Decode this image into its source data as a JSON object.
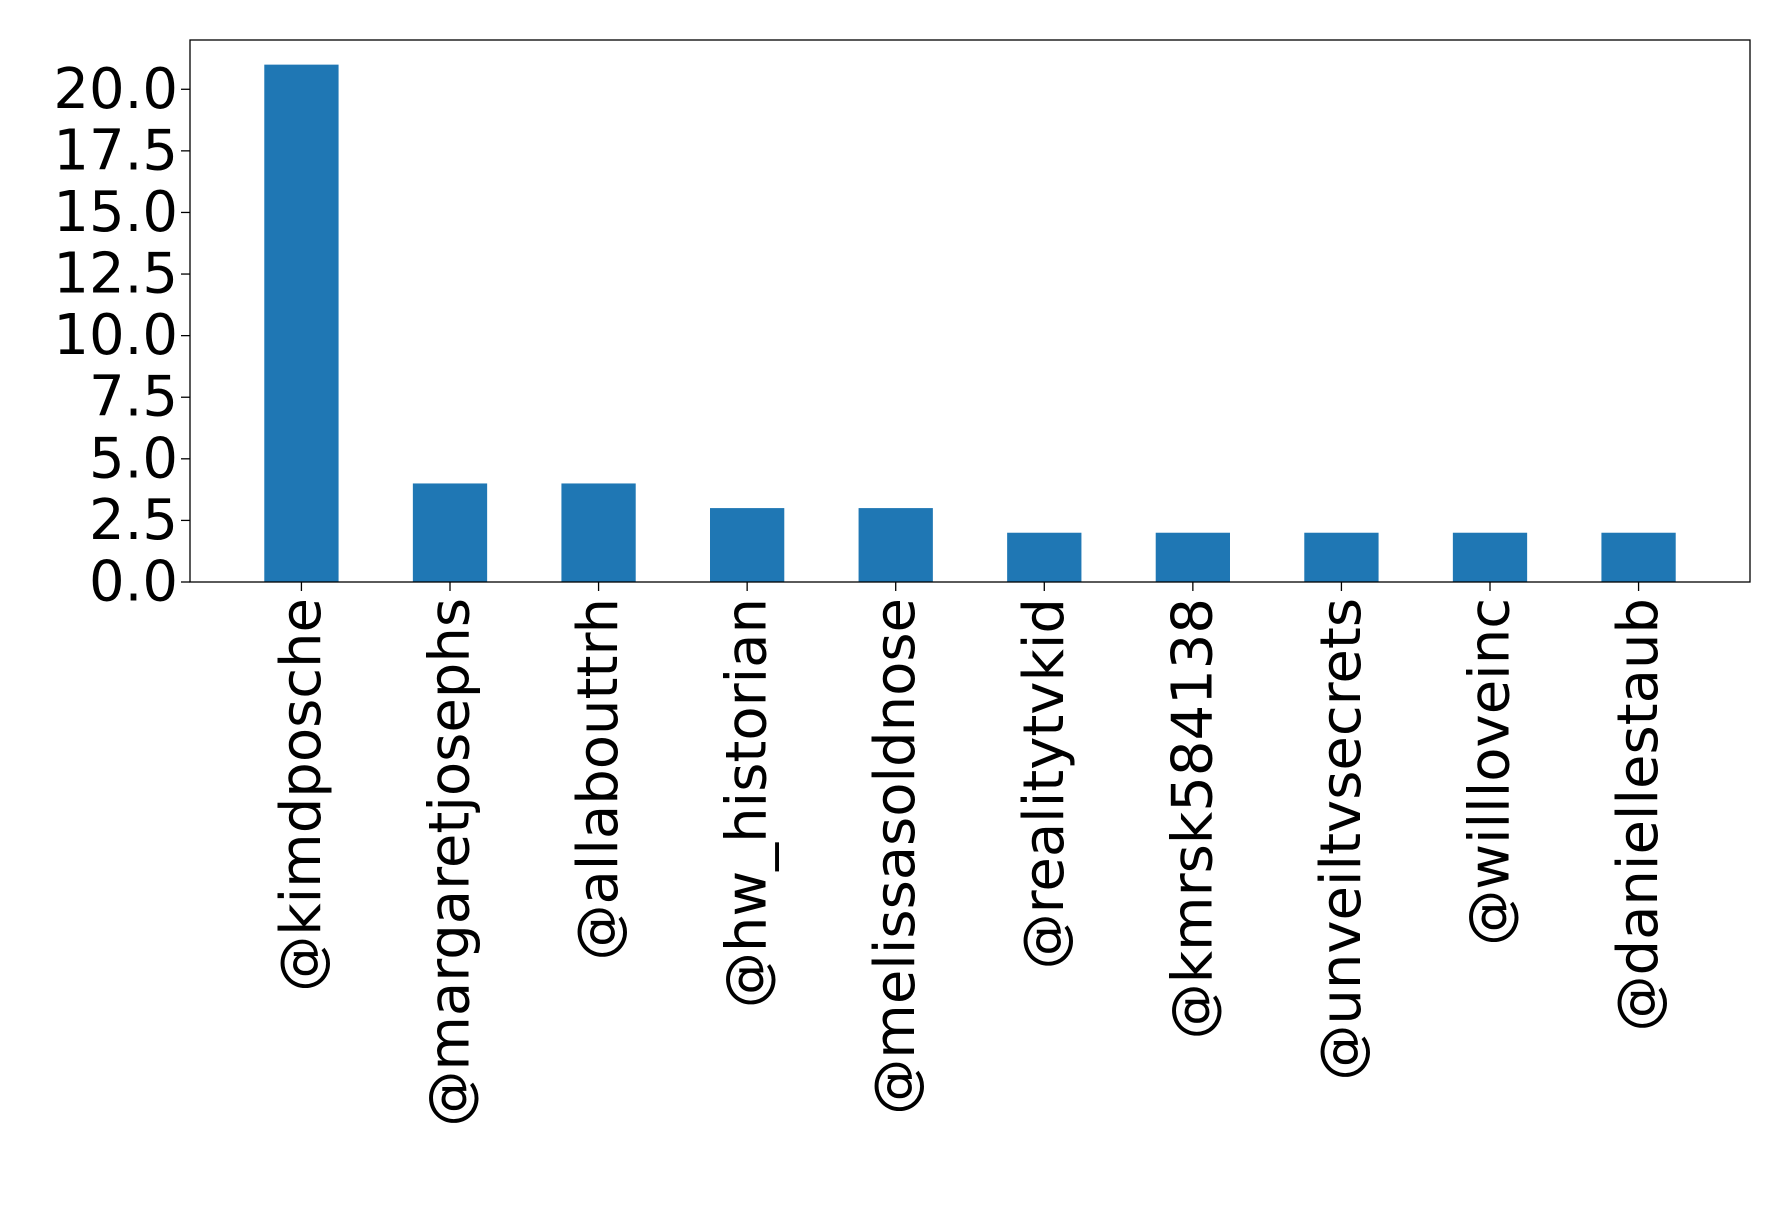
{
  "chart_data": {
    "type": "bar",
    "title": "",
    "xlabel": "",
    "ylabel": "",
    "categories": [
      "@kimdposche",
      "@margaretjosephs",
      "@allabouttrh",
      "@hw_historian",
      "@melissasoldnose",
      "@realitytvkid",
      "@kmrsk584138",
      "@unveiltvsecrets",
      "@willloveinc",
      "@daniellestaub"
    ],
    "values": [
      21,
      4,
      4,
      3,
      3,
      2,
      2,
      2,
      2,
      2
    ],
    "ylim": [
      0,
      22
    ],
    "yticks": [
      0,
      2.5,
      5,
      7.5,
      10,
      12.5,
      15,
      17.5,
      20
    ],
    "ytick_labels": [
      "0.0",
      "2.5",
      "5.0",
      "7.5",
      "10.0",
      "12.5",
      "15.0",
      "17.5",
      "20.0"
    ],
    "grid": false,
    "legend": "none",
    "bar_color": "#1f77b4"
  }
}
